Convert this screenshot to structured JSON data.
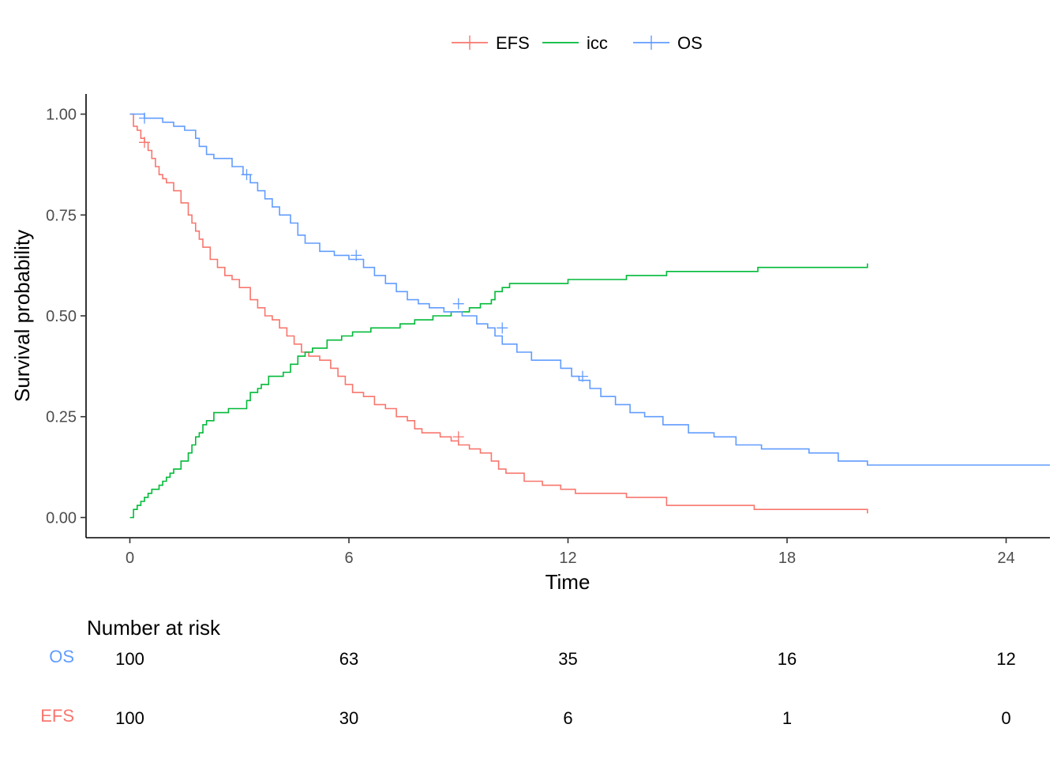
{
  "chart_data": {
    "type": "line",
    "xlabel": "Time",
    "ylabel": "Survival probability",
    "xlim": [
      -1.2,
      25.2
    ],
    "ylim": [
      -0.05,
      1.05
    ],
    "x_ticks": [
      0,
      6,
      12,
      18,
      24
    ],
    "x_tick_labels": [
      "0",
      "6",
      "12",
      "18",
      "24"
    ],
    "y_ticks": [
      0,
      0.25,
      0.5,
      0.75,
      1.0
    ],
    "y_tick_labels": [
      "0.00",
      "0.25",
      "0.50",
      "0.75",
      "1.00"
    ],
    "legend_position": "top",
    "colors": {
      "EFS": "#F8766D",
      "icc": "#00BA38",
      "OS": "#619CFF"
    },
    "series": [
      {
        "name": "EFS",
        "type": "step",
        "censor_marks": true,
        "x": [
          0.0,
          0.1,
          0.2,
          0.3,
          0.4,
          0.5,
          0.6,
          0.7,
          0.8,
          0.9,
          1.0,
          1.2,
          1.4,
          1.6,
          1.7,
          1.8,
          1.9,
          2.0,
          2.2,
          2.4,
          2.6,
          2.8,
          3.0,
          3.3,
          3.5,
          3.7,
          3.9,
          4.1,
          4.3,
          4.5,
          4.7,
          4.9,
          5.2,
          5.5,
          5.7,
          5.9,
          6.1,
          6.4,
          6.7,
          7.0,
          7.3,
          7.6,
          7.8,
          8.0,
          8.5,
          8.8,
          9.0,
          9.3,
          9.6,
          9.9,
          10.1,
          10.3,
          10.8,
          11.3,
          11.8,
          12.2,
          13.6,
          14.7,
          17.1,
          20.2
        ],
        "y": [
          1.0,
          0.97,
          0.96,
          0.94,
          0.93,
          0.91,
          0.89,
          0.87,
          0.85,
          0.84,
          0.83,
          0.81,
          0.78,
          0.75,
          0.73,
          0.71,
          0.69,
          0.67,
          0.64,
          0.62,
          0.6,
          0.59,
          0.57,
          0.54,
          0.52,
          0.5,
          0.49,
          0.47,
          0.45,
          0.43,
          0.41,
          0.4,
          0.39,
          0.37,
          0.35,
          0.33,
          0.31,
          0.3,
          0.28,
          0.27,
          0.25,
          0.24,
          0.22,
          0.21,
          0.2,
          0.19,
          0.18,
          0.17,
          0.16,
          0.14,
          0.12,
          0.11,
          0.09,
          0.08,
          0.07,
          0.06,
          0.05,
          0.03,
          0.02,
          0.01
        ],
        "censored_x": [
          0.4,
          9.0
        ],
        "censored_y": [
          0.93,
          0.2
        ]
      },
      {
        "name": "icc",
        "type": "step",
        "censor_marks": false,
        "x": [
          0.0,
          0.1,
          0.2,
          0.3,
          0.4,
          0.5,
          0.6,
          0.8,
          0.9,
          1.0,
          1.1,
          1.2,
          1.4,
          1.6,
          1.7,
          1.8,
          1.9,
          2.0,
          2.1,
          2.3,
          2.7,
          3.2,
          3.3,
          3.5,
          3.6,
          3.8,
          4.2,
          4.4,
          4.6,
          4.8,
          5.0,
          5.4,
          5.8,
          6.1,
          6.6,
          7.4,
          7.8,
          8.3,
          8.8,
          9.3,
          9.6,
          9.9,
          10.0,
          10.2,
          10.4,
          12.0,
          13.6,
          14.7,
          17.2,
          20.2
        ],
        "y": [
          0.0,
          0.02,
          0.03,
          0.04,
          0.05,
          0.06,
          0.07,
          0.08,
          0.09,
          0.1,
          0.11,
          0.12,
          0.14,
          0.16,
          0.18,
          0.2,
          0.21,
          0.23,
          0.24,
          0.26,
          0.27,
          0.29,
          0.31,
          0.32,
          0.33,
          0.35,
          0.36,
          0.38,
          0.4,
          0.41,
          0.42,
          0.44,
          0.45,
          0.46,
          0.47,
          0.48,
          0.49,
          0.5,
          0.51,
          0.52,
          0.53,
          0.54,
          0.56,
          0.57,
          0.58,
          0.59,
          0.6,
          0.61,
          0.62,
          0.63
        ],
        "censored_x": [],
        "censored_y": []
      },
      {
        "name": "OS",
        "type": "step",
        "censor_marks": true,
        "x": [
          0.0,
          0.4,
          0.9,
          1.2,
          1.5,
          1.8,
          1.9,
          2.1,
          2.3,
          2.8,
          3.1,
          3.3,
          3.5,
          3.7,
          3.9,
          4.1,
          4.4,
          4.6,
          4.8,
          5.2,
          5.6,
          6.0,
          6.4,
          6.7,
          7.0,
          7.3,
          7.6,
          7.9,
          8.2,
          8.6,
          9.1,
          9.5,
          9.8,
          10.0,
          10.2,
          10.6,
          11.0,
          11.8,
          12.1,
          12.3,
          12.6,
          12.9,
          13.3,
          13.7,
          14.1,
          14.6,
          15.3,
          16.0,
          16.6,
          17.3,
          18.6,
          19.4,
          20.2,
          25.2
        ],
        "y": [
          1.0,
          0.99,
          0.98,
          0.97,
          0.96,
          0.94,
          0.92,
          0.9,
          0.89,
          0.87,
          0.85,
          0.83,
          0.81,
          0.79,
          0.77,
          0.75,
          0.73,
          0.7,
          0.68,
          0.66,
          0.65,
          0.64,
          0.62,
          0.6,
          0.58,
          0.56,
          0.54,
          0.53,
          0.52,
          0.51,
          0.5,
          0.48,
          0.47,
          0.45,
          0.43,
          0.41,
          0.39,
          0.37,
          0.35,
          0.34,
          0.32,
          0.3,
          0.28,
          0.26,
          0.25,
          0.23,
          0.21,
          0.2,
          0.18,
          0.17,
          0.16,
          0.14,
          0.13,
          0.13
        ],
        "censored_x": [
          0.4,
          3.2,
          6.2,
          9.0,
          10.2,
          12.4
        ],
        "censored_y": [
          0.99,
          0.85,
          0.65,
          0.53,
          0.47,
          0.35
        ]
      }
    ],
    "risk_table": {
      "title": "Number at risk",
      "times": [
        0,
        6,
        12,
        18,
        24
      ],
      "strata": [
        {
          "name": "OS",
          "color": "#619CFF",
          "counts": [
            "100",
            "63",
            "35",
            "16",
            "12"
          ]
        },
        {
          "name": "EFS",
          "color": "#F8766D",
          "counts": [
            "100",
            "30",
            "6",
            "1",
            "0"
          ]
        }
      ]
    }
  }
}
